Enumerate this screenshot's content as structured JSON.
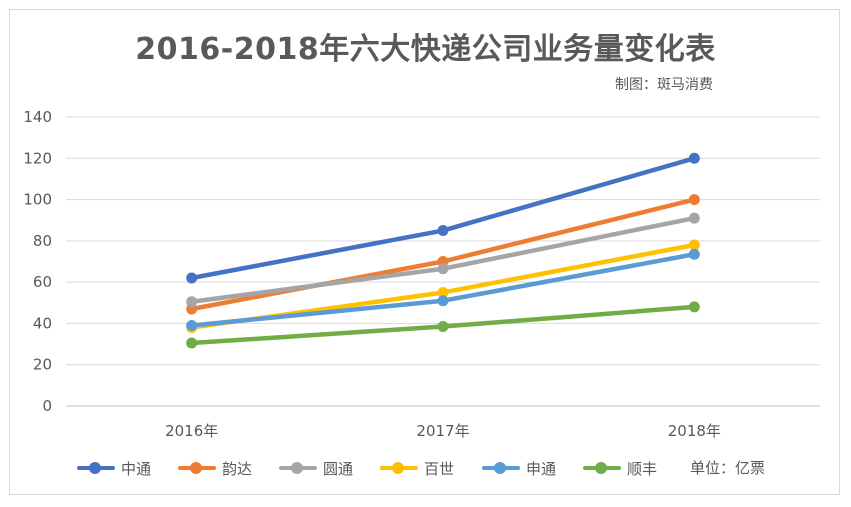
{
  "chart_data": {
    "type": "line",
    "title": "2016-2018年六大快递公司业务量变化表",
    "subtitle": "制图：斑马消费",
    "unit_note": "单位：亿票",
    "categories": [
      "2016年",
      "2017年",
      "2018年"
    ],
    "ylim": [
      0,
      140
    ],
    "yticks": [
      0,
      20,
      40,
      60,
      80,
      100,
      120,
      140
    ],
    "grid": true,
    "legend_position": "bottom",
    "series": [
      {
        "name": "中通",
        "color": "#4472c4",
        "values": [
          62,
          85,
          120
        ]
      },
      {
        "name": "韵达",
        "color": "#ed7d31",
        "values": [
          47,
          70,
          100
        ]
      },
      {
        "name": "圆通",
        "color": "#a5a5a5",
        "values": [
          50.5,
          66.5,
          91
        ]
      },
      {
        "name": "百世",
        "color": "#ffc000",
        "values": [
          38,
          55,
          78
        ]
      },
      {
        "name": "申通",
        "color": "#5b9bd5",
        "values": [
          39,
          51,
          73.5
        ]
      },
      {
        "name": "顺丰",
        "color": "#70ad47",
        "values": [
          30.5,
          38.5,
          48
        ]
      }
    ]
  }
}
